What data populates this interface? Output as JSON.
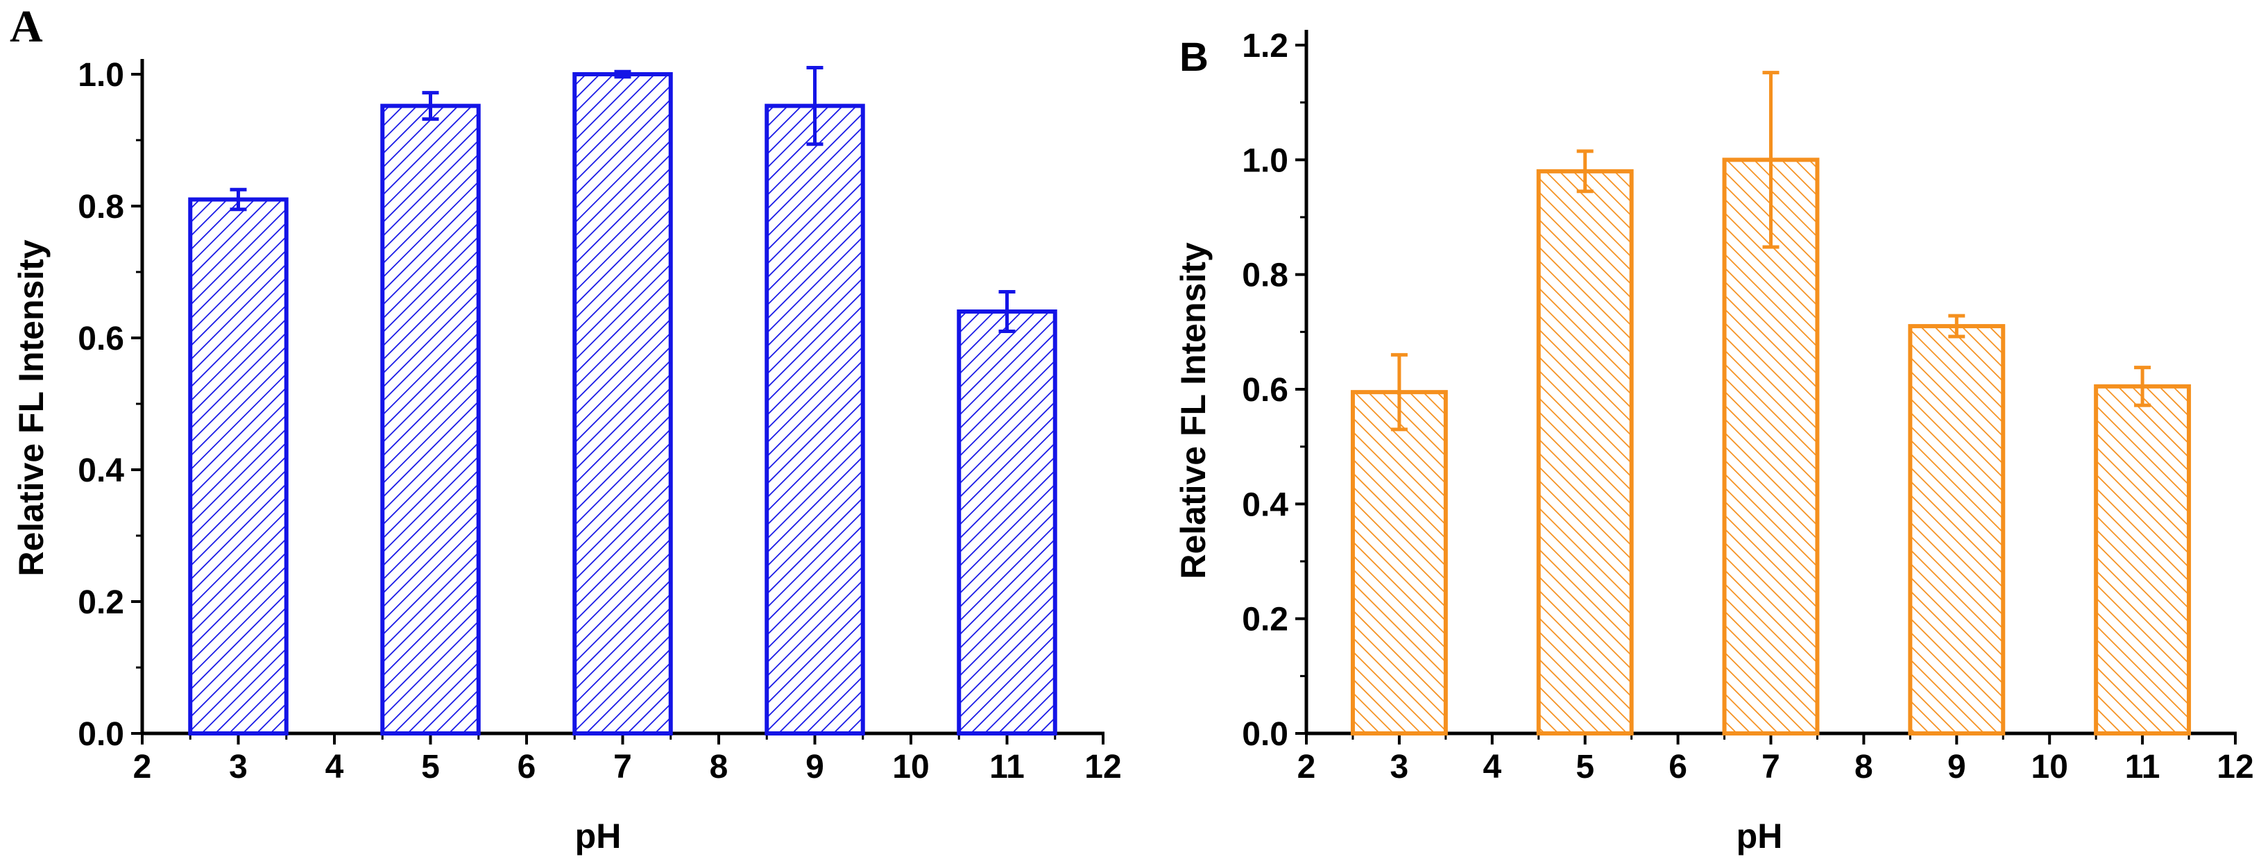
{
  "chart_data": [
    {
      "panel": "A",
      "type": "bar",
      "categories": [
        "3",
        "5",
        "7",
        "9",
        "11"
      ],
      "x": [
        3,
        5,
        7,
        9,
        11
      ],
      "values": [
        0.81,
        0.952,
        1.0,
        0.952,
        0.64
      ],
      "errors": [
        0.015,
        0.02,
        0.004,
        0.058,
        0.03
      ],
      "xlabel": "pH",
      "ylabel": "Relative FL Intensity",
      "xlim": [
        2,
        12
      ],
      "ylim": [
        0,
        1.0
      ],
      "xticks": [
        "2",
        "3",
        "4",
        "5",
        "6",
        "7",
        "8",
        "9",
        "10",
        "11",
        "12"
      ],
      "yticks": [
        "0.0",
        "0.2",
        "0.4",
        "0.6",
        "0.8",
        "1.0"
      ],
      "color": "#1414e6",
      "pattern": "diagonal-hatch-down"
    },
    {
      "panel": "B",
      "type": "bar",
      "categories": [
        "3",
        "5",
        "7",
        "9",
        "11"
      ],
      "x": [
        3,
        5,
        7,
        9,
        11
      ],
      "values": [
        0.595,
        0.98,
        1.0,
        0.71,
        0.605
      ],
      "errors": [
        0.065,
        0.035,
        0.152,
        0.018,
        0.033
      ],
      "xlabel": "pH",
      "ylabel": "Relative FL Intensity",
      "xlim": [
        2,
        12
      ],
      "ylim": [
        0,
        1.2
      ],
      "xticks": [
        "2",
        "3",
        "4",
        "5",
        "6",
        "7",
        "8",
        "9",
        "10",
        "11",
        "12"
      ],
      "yticks": [
        "0.0",
        "0.2",
        "0.4",
        "0.6",
        "0.8",
        "1.0",
        "1.2"
      ],
      "color": "#f5901e",
      "pattern": "diagonal-hatch-up"
    }
  ]
}
